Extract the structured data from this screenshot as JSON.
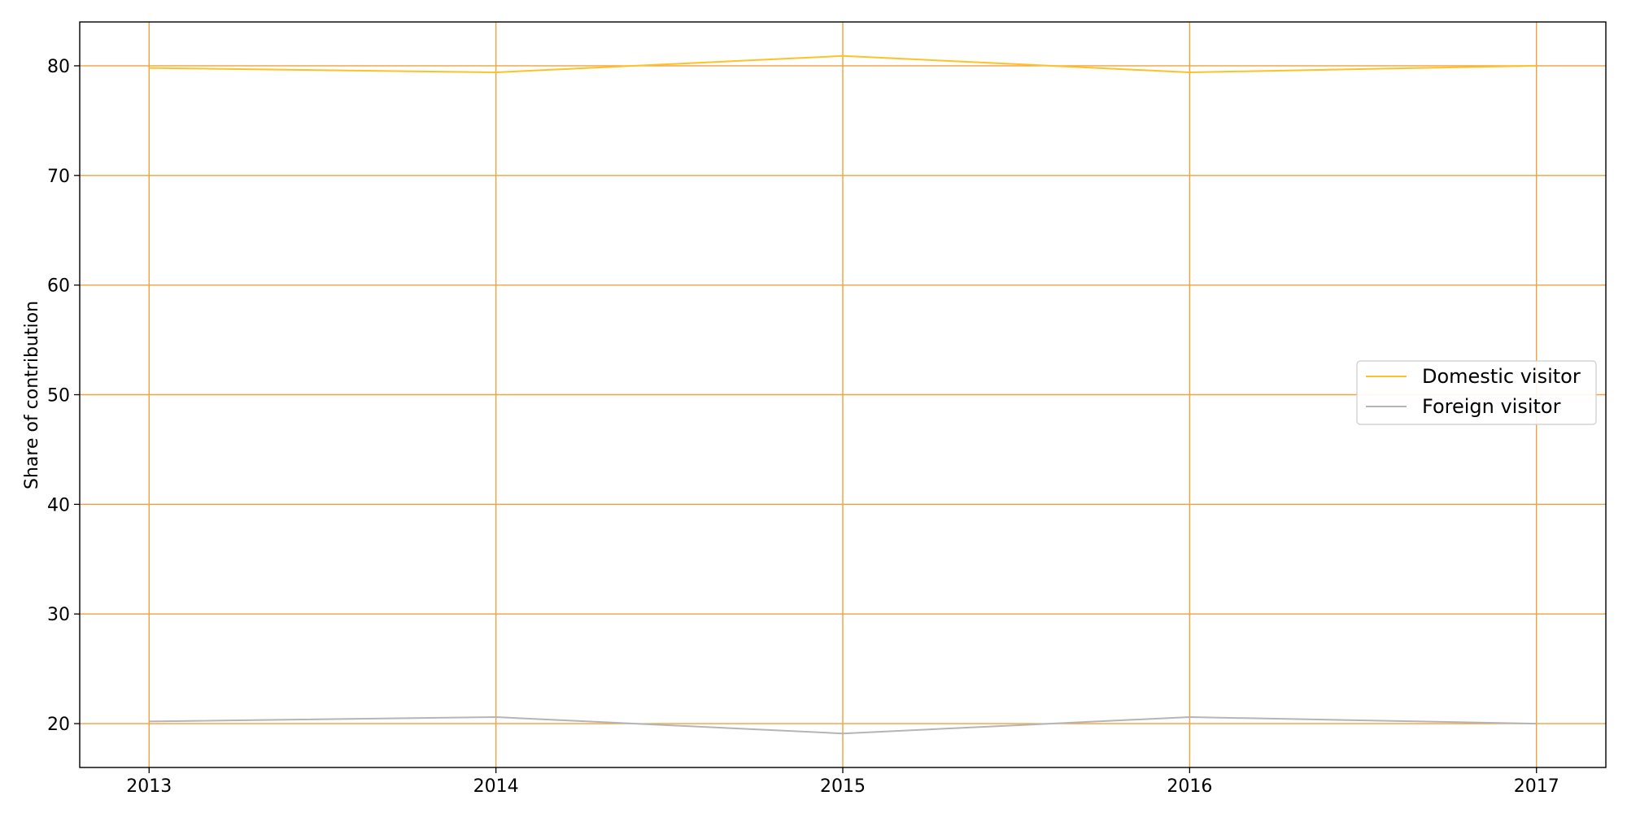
{
  "chart_data": {
    "type": "line",
    "title": "",
    "xlabel": "",
    "ylabel": "Share of contribution",
    "x": [
      "2013",
      "2014",
      "2015",
      "2016",
      "2017"
    ],
    "xlim": [
      2012.8,
      2017.2
    ],
    "ylim": [
      16,
      84
    ],
    "yticks": [
      20,
      30,
      40,
      50,
      60,
      70,
      80
    ],
    "grid": true,
    "grid_color": "#f0a23c",
    "legend_position": "center-right",
    "series": [
      {
        "name": "Domestic visitor",
        "values": [
          79.8,
          79.4,
          80.9,
          79.4,
          80.0
        ],
        "color": "#ffc125"
      },
      {
        "name": "Foreign visitor",
        "values": [
          20.2,
          20.6,
          19.1,
          20.6,
          20.0
        ],
        "color": "#b5b5b5"
      }
    ]
  }
}
